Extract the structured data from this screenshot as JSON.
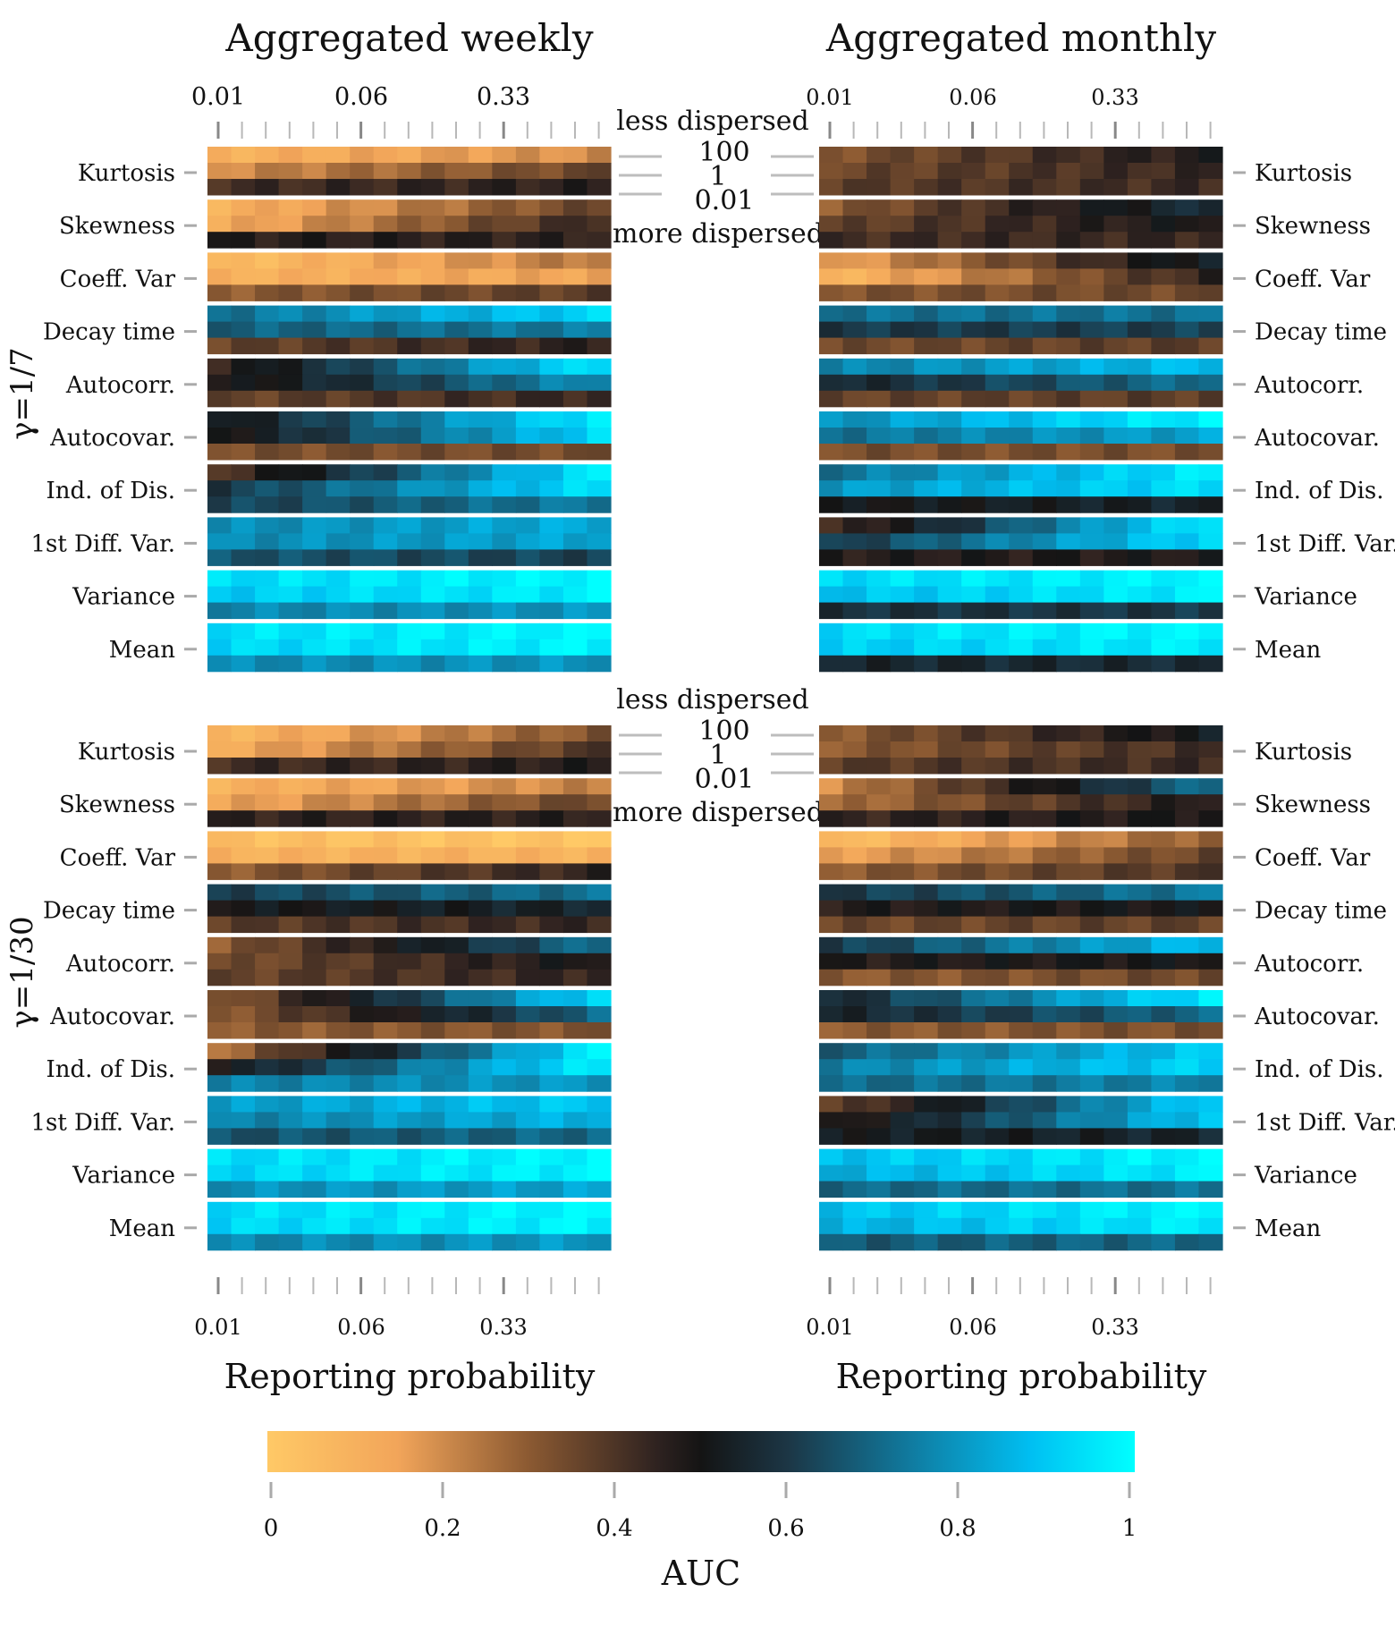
{
  "chart_data": {
    "type": "heatmap",
    "columns": [
      "Aggregated weekly",
      "Aggregated monthly"
    ],
    "rows": [
      "γ=1/7",
      "γ=1/30"
    ],
    "x_axis": {
      "label": "Reporting probability",
      "tick_labels": [
        "0.01",
        "0.06",
        "0.33"
      ],
      "n_levels": 17
    },
    "metrics": [
      "Kurtosis",
      "Skewness",
      "Coeff. Var",
      "Decay time",
      "Autocorr.",
      "Autocovar.",
      "Ind. of Dis.",
      "1st Diff. Var.",
      "Variance",
      "Mean"
    ],
    "dispersion_levels": [
      "100",
      "1",
      "0.01"
    ],
    "dispersion_labels": {
      "top": "less dispersed",
      "bottom": "more dispersed"
    },
    "colorbar": {
      "label": "AUC",
      "range": [
        0,
        1
      ],
      "tick_labels": [
        "0",
        "0.2",
        "0.4",
        "0.6",
        "0.8",
        "1"
      ],
      "stops": [
        {
          "v": 0.0,
          "color": "#ffc966"
        },
        {
          "v": 0.15,
          "color": "#f2a55a"
        },
        {
          "v": 0.3,
          "color": "#8c5a32"
        },
        {
          "v": 0.45,
          "color": "#2e2220"
        },
        {
          "v": 0.5,
          "color": "#141414"
        },
        {
          "v": 0.6,
          "color": "#1c3645"
        },
        {
          "v": 0.75,
          "color": "#0f7fa5"
        },
        {
          "v": 0.88,
          "color": "#00bff2"
        },
        {
          "v": 1.0,
          "color": "#00ffff"
        }
      ]
    },
    "auc_profiles": {
      "weekly_g7": {
        "Kurtosis": [
          [
            0.1,
            0.2
          ],
          [
            0.2,
            0.36
          ],
          [
            0.42,
            0.46
          ]
        ],
        "Skewness": [
          [
            0.1,
            0.36
          ],
          [
            0.12,
            0.44
          ],
          [
            0.47,
            0.45
          ]
        ],
        "Coeff. Var": [
          [
            0.05,
            0.25
          ],
          [
            0.1,
            0.15
          ],
          [
            0.3,
            0.38
          ]
        ],
        "Decay time": [
          [
            0.72,
            0.92
          ],
          [
            0.68,
            0.74
          ],
          [
            0.36,
            0.46
          ]
        ],
        "Autocorr.": [
          [
            0.45,
            0.95
          ],
          [
            0.47,
            0.78
          ],
          [
            0.36,
            0.44
          ]
        ],
        "Autocovar.": [
          [
            0.5,
            0.97
          ],
          [
            0.48,
            0.92
          ],
          [
            0.33,
            0.34
          ]
        ],
        "Ind. of Dis.": [
          [
            0.4,
            0.96
          ],
          [
            0.6,
            0.94
          ],
          [
            0.62,
            0.74
          ]
        ],
        "1st Diff. Var.": [
          [
            0.77,
            0.84
          ],
          [
            0.77,
            0.83
          ],
          [
            0.66,
            0.62
          ]
        ],
        "Variance": [
          [
            0.93,
            0.99
          ],
          [
            0.9,
            0.97
          ],
          [
            0.76,
            0.79
          ]
        ],
        "Mean": [
          [
            0.94,
            0.99
          ],
          [
            0.92,
            0.98
          ],
          [
            0.77,
            0.79
          ]
        ]
      },
      "monthly_g7": {
        "Kurtosis": [
          [
            0.32,
            0.48
          ],
          [
            0.35,
            0.44
          ],
          [
            0.38,
            0.43
          ]
        ],
        "Skewness": [
          [
            0.3,
            0.58
          ],
          [
            0.36,
            0.5
          ],
          [
            0.42,
            0.44
          ]
        ],
        "Coeff. Var": [
          [
            0.15,
            0.55
          ],
          [
            0.08,
            0.45
          ],
          [
            0.32,
            0.35
          ]
        ],
        "Decay time": [
          [
            0.72,
            0.72
          ],
          [
            0.6,
            0.62
          ],
          [
            0.34,
            0.38
          ]
        ],
        "Autocorr.": [
          [
            0.75,
            0.88
          ],
          [
            0.55,
            0.72
          ],
          [
            0.36,
            0.38
          ]
        ],
        "Autocovar.": [
          [
            0.78,
            0.98
          ],
          [
            0.72,
            0.82
          ],
          [
            0.33,
            0.33
          ]
        ],
        "Ind. of Dis.": [
          [
            0.72,
            0.96
          ],
          [
            0.8,
            0.94
          ],
          [
            0.5,
            0.55
          ]
        ],
        "1st Diff. Var.": [
          [
            0.4,
            0.97
          ],
          [
            0.6,
            0.93
          ],
          [
            0.47,
            0.48
          ]
        ],
        "Variance": [
          [
            0.93,
            0.99
          ],
          [
            0.88,
            0.97
          ],
          [
            0.58,
            0.6
          ]
        ],
        "Mean": [
          [
            0.93,
            0.99
          ],
          [
            0.9,
            0.97
          ],
          [
            0.55,
            0.57
          ]
        ]
      },
      "weekly_g30": {
        "Kurtosis": [
          [
            0.08,
            0.32
          ],
          [
            0.12,
            0.4
          ],
          [
            0.42,
            0.47
          ]
        ],
        "Skewness": [
          [
            0.1,
            0.22
          ],
          [
            0.14,
            0.36
          ],
          [
            0.45,
            0.46
          ]
        ],
        "Coeff. Var": [
          [
            0.05,
            0.02
          ],
          [
            0.1,
            0.1
          ],
          [
            0.3,
            0.45
          ]
        ],
        "Decay time": [
          [
            0.62,
            0.72
          ],
          [
            0.5,
            0.55
          ],
          [
            0.38,
            0.44
          ]
        ],
        "Autocorr.": [
          [
            0.3,
            0.72
          ],
          [
            0.33,
            0.5
          ],
          [
            0.36,
            0.45
          ]
        ],
        "Autocovar.": [
          [
            0.3,
            0.93
          ],
          [
            0.3,
            0.7
          ],
          [
            0.3,
            0.32
          ]
        ],
        "Ind. of Dis.": [
          [
            0.25,
            0.97
          ],
          [
            0.5,
            0.96
          ],
          [
            0.75,
            0.8
          ]
        ],
        "1st Diff. Var.": [
          [
            0.8,
            0.9
          ],
          [
            0.75,
            0.86
          ],
          [
            0.65,
            0.7
          ]
        ],
        "Variance": [
          [
            0.93,
            0.99
          ],
          [
            0.92,
            0.98
          ],
          [
            0.78,
            0.82
          ]
        ],
        "Mean": [
          [
            0.93,
            0.99
          ],
          [
            0.92,
            0.98
          ],
          [
            0.76,
            0.8
          ]
        ]
      },
      "monthly_g30": {
        "Kurtosis": [
          [
            0.3,
            0.52
          ],
          [
            0.3,
            0.42
          ],
          [
            0.38,
            0.43
          ]
        ],
        "Skewness": [
          [
            0.2,
            0.72
          ],
          [
            0.25,
            0.48
          ],
          [
            0.44,
            0.49
          ]
        ],
        "Coeff. Var": [
          [
            0.05,
            0.3
          ],
          [
            0.15,
            0.36
          ],
          [
            0.3,
            0.4
          ]
        ],
        "Decay time": [
          [
            0.6,
            0.74
          ],
          [
            0.47,
            0.5
          ],
          [
            0.35,
            0.37
          ]
        ],
        "Autocorr.": [
          [
            0.6,
            0.88
          ],
          [
            0.47,
            0.5
          ],
          [
            0.3,
            0.35
          ]
        ],
        "Autocovar.": [
          [
            0.55,
            0.96
          ],
          [
            0.55,
            0.7
          ],
          [
            0.3,
            0.33
          ]
        ],
        "Ind. of Dis.": [
          [
            0.68,
            0.9
          ],
          [
            0.75,
            0.92
          ],
          [
            0.7,
            0.76
          ]
        ],
        "1st Diff. Var.": [
          [
            0.35,
            0.92
          ],
          [
            0.45,
            0.9
          ],
          [
            0.52,
            0.55
          ]
        ],
        "Variance": [
          [
            0.88,
            0.99
          ],
          [
            0.84,
            0.97
          ],
          [
            0.7,
            0.72
          ]
        ],
        "Mean": [
          [
            0.88,
            0.99
          ],
          [
            0.84,
            0.97
          ],
          [
            0.67,
            0.7
          ]
        ]
      }
    }
  }
}
